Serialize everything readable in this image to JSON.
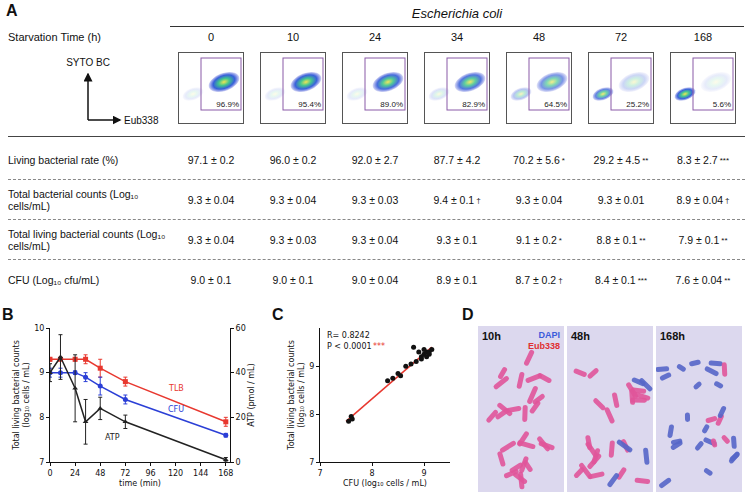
{
  "panel_A": {
    "letter": "A",
    "title": "Escherichia coli",
    "header_label": "Starvation Time (h)",
    "times": [
      0,
      10,
      24,
      34,
      48,
      72,
      168
    ],
    "flow": {
      "y_label": "SYTO BC",
      "x_label": "Eub338",
      "gate_values": [
        96.9,
        95.4,
        89.0,
        82.9,
        64.5,
        25.2,
        5.6
      ],
      "gate_labels": [
        "96.9%",
        "95.4%",
        "89.0%",
        "82.9%",
        "64.5%",
        "25.2%",
        "5.6%"
      ]
    },
    "table": {
      "rows": [
        {
          "label": "Living bacterial rate (%)",
          "cells": [
            "97.1 ± 0.2",
            "96.0 ± 0.2",
            "92.0 ± 2.7",
            "87.7 ± 4.2",
            "70.2 ± 5.6",
            "29.2 ± 4.5",
            "8.3 ± 2.7"
          ],
          "marks": [
            null,
            null,
            null,
            null,
            "*",
            "**",
            "***"
          ]
        },
        {
          "label": "Total bacterial counts (Log₁₀ cells/mL)",
          "cells": [
            "9.3 ± 0.04",
            "9.3 ± 0.04",
            "9.3 ± 0.03",
            "9.4 ± 0.1",
            "9.3 ± 0.04",
            "9.3 ± 0.01",
            "8.9 ± 0.04"
          ],
          "marks": [
            null,
            null,
            null,
            "†",
            null,
            null,
            "†"
          ]
        },
        {
          "label": "Total living bacterial counts (Log₁₀ cells/mL)",
          "cells": [
            "9.3 ± 0.04",
            "9.3 ± 0.03",
            "9.3 ± 0.04",
            "9.3 ± 0.1",
            "9.1 ± 0.2",
            "8.8 ± 0.1",
            "7.9 ± 0.1"
          ],
          "marks": [
            null,
            null,
            null,
            null,
            "*",
            "**",
            "**"
          ]
        },
        {
          "label": "CFU (Log₁₀ cfu/mL)",
          "cells": [
            "9.0 ± 0.1",
            "9.0 ± 0.1",
            "9.0 ± 0.04",
            "8.9 ± 0.1",
            "8.7 ± 0.2",
            "8.4 ± 0.1",
            "7.6 ± 0.04"
          ],
          "marks": [
            null,
            null,
            null,
            null,
            "†",
            "***",
            "**"
          ]
        }
      ]
    }
  },
  "chart_data": [
    {
      "letter": "B",
      "type": "line",
      "xlabel": "time (min)",
      "ylabel": "Total living bacterial counts (log₁₀ cells / mL)",
      "y2label": "ATP (pmol / mL)",
      "x": [
        0,
        10,
        24,
        34,
        48,
        72,
        168
      ],
      "xlim": [
        0,
        172
      ],
      "xticks": [
        0,
        24,
        48,
        72,
        96,
        120,
        144,
        168
      ],
      "ylim": [
        7,
        10
      ],
      "yticks": [
        7,
        8,
        9,
        10
      ],
      "y2lim": [
        0,
        60
      ],
      "y2ticks": [
        0,
        20,
        40,
        60
      ],
      "grid": false,
      "series": [
        {
          "name": "TLB",
          "color": "#e8382f",
          "marker": "square",
          "values": [
            9.3,
            9.3,
            9.3,
            9.3,
            9.1,
            8.8,
            7.9
          ],
          "error": [
            0.04,
            0.03,
            0.04,
            0.1,
            0.2,
            0.1,
            0.1
          ],
          "label_x": 120,
          "label_y": 8.65
        },
        {
          "name": "CFU",
          "color": "#2b3fd6",
          "marker": "circle",
          "values": [
            9.0,
            9.0,
            9.0,
            8.9,
            8.7,
            8.4,
            7.6
          ],
          "error": [
            0.1,
            0.1,
            0.04,
            0.1,
            0.2,
            0.1,
            0.04
          ],
          "label_x": 120,
          "label_y": 8.18
        },
        {
          "name": "ATP",
          "color": "#222222",
          "marker": "triangle-up",
          "axis": "y2",
          "values": [
            40,
            47,
            33,
            18,
            24,
            18,
            1
          ],
          "error": [
            4,
            10,
            15,
            10,
            5,
            3,
            1
          ],
          "label_x": 60,
          "label_y": 11
        }
      ]
    },
    {
      "letter": "C",
      "type": "scatter",
      "xlabel": "CFU (log₁₀ cells / mL)",
      "ylabel": "Total living bacterial counts (log₁₀ cells / mL)",
      "x": [
        7.55,
        7.6,
        7.62,
        8.3,
        8.4,
        8.5,
        8.55,
        8.65,
        8.75,
        8.85,
        8.9,
        8.95,
        9.0,
        9.0,
        9.05,
        9.05,
        9.1,
        9.1,
        9.15,
        8.8,
        8.95
      ],
      "values": [
        7.85,
        7.95,
        7.9,
        8.7,
        8.75,
        8.85,
        8.8,
        9.0,
        9.05,
        9.1,
        9.3,
        9.2,
        9.25,
        9.35,
        9.3,
        9.2,
        9.3,
        9.25,
        9.35,
        9.4,
        9.15
      ],
      "color": "#111111",
      "marker": "circle",
      "fit_line": {
        "x": [
          7.5,
          9.15
        ],
        "y": [
          7.85,
          9.4
        ],
        "color": "#e8382f"
      },
      "xlim": [
        7,
        9.5
      ],
      "xticks": [
        7,
        8,
        9
      ],
      "ylim": [
        7,
        9.8
      ],
      "yticks": [
        7,
        8,
        9
      ],
      "grid": false,
      "annotations": [
        {
          "text": "R= 0.8242",
          "x": 7.1,
          "y": 9.65,
          "color": "#111111"
        },
        {
          "text": "P < 0.0001",
          "x": 7.1,
          "y": 9.42,
          "color": "#111111"
        },
        {
          "text": "***",
          "x": 7.98,
          "y": 9.42,
          "color": "#e8382f"
        }
      ]
    }
  ],
  "panel_D": {
    "letter": "D",
    "images": [
      "10h",
      "48h",
      "168h"
    ],
    "stains": [
      {
        "text": "DAPI",
        "color": "#3b5bdb"
      },
      {
        "text": "Eub338",
        "color": "#e03131"
      }
    ]
  }
}
